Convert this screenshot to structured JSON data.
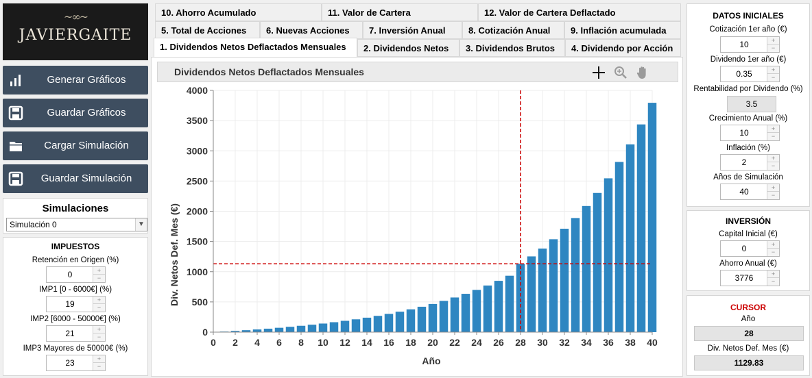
{
  "logo": {
    "text": "JAVIERGAITE",
    "ornament": "~∞~"
  },
  "left_buttons": [
    {
      "label": "Generar Gráficos",
      "icon": "bar-chart-icon"
    },
    {
      "label": "Guardar Gráficos",
      "icon": "floppy-icon"
    },
    {
      "label": "Cargar Simulación",
      "icon": "folder-icon"
    },
    {
      "label": "Guardar Simulación",
      "icon": "floppy-icon"
    }
  ],
  "simulaciones": {
    "title": "Simulaciones",
    "selected": "Simulación 0"
  },
  "impuestos": {
    "title": "IMPUESTOS",
    "fields": [
      {
        "label": "Retención en Origen (%)",
        "value": "0"
      },
      {
        "label": "IMP1 [0 - 6000€] (%)",
        "value": "19"
      },
      {
        "label": "IMP2 [6000 - 50000€] (%)",
        "value": "21"
      },
      {
        "label": "IMP3 Mayores de 50000€ (%)",
        "value": "23"
      }
    ]
  },
  "tabs": {
    "row1": [
      "10. Ahorro Acumulado",
      "11. Valor de Cartera",
      "12. Valor de Cartera Deflactado"
    ],
    "row2": [
      "5. Total de Acciones",
      "6. Nuevas Acciones",
      "7. Inversión Anual",
      "8. Cotización Anual",
      "9. Inflación acumulada"
    ],
    "row3": [
      "1. Dividendos Netos Deflactados Mensuales",
      "2. Dividendos Netos",
      "3. Dividendos Brutos",
      "4. Dividendo por Acción"
    ],
    "active": "1. Dividendos Netos Deflactados Mensuales"
  },
  "chart_panel": {
    "title": "Dividendos Netos Deflactados Mensuales"
  },
  "datos_iniciales": {
    "title": "DATOS INICIALES",
    "fields": [
      {
        "label": "Cotización 1er año (€)",
        "value": "10"
      },
      {
        "label": "Dividendo 1er año (€)",
        "value": "0.35"
      },
      {
        "label": "Rentabilidad por Dividendo (%)",
        "value": "3.5",
        "readonly": true
      },
      {
        "label": "Crecimiento Anual (%)",
        "value": "10"
      },
      {
        "label": "Inflación (%)",
        "value": "2"
      },
      {
        "label": "Años de Simulación",
        "value": "40"
      }
    ]
  },
  "inversion": {
    "title": "INVERSIÓN",
    "fields": [
      {
        "label": "Capital Inicial (€)",
        "value": "0"
      },
      {
        "label": "Ahorro Anual (€)",
        "value": "3776"
      }
    ]
  },
  "cursor": {
    "title": "CURSOR",
    "year_label": "Año",
    "year_value": "28",
    "div_label": "Div. Netos Def. Mes (€)",
    "div_value": "1129.83"
  },
  "colors": {
    "bar": "#2e86c1",
    "cursor": "#cc0000",
    "button_bg": "#3e4e60"
  },
  "chart_data": {
    "type": "bar",
    "title": "",
    "xlabel": "Año",
    "ylabel": "Div. Netos Def. Mes (€)",
    "x": [
      1,
      2,
      3,
      4,
      5,
      6,
      7,
      8,
      9,
      10,
      11,
      12,
      13,
      14,
      15,
      16,
      17,
      18,
      19,
      20,
      21,
      22,
      23,
      24,
      25,
      26,
      27,
      28,
      29,
      30,
      31,
      32,
      33,
      34,
      35,
      36,
      37,
      38,
      39,
      40
    ],
    "values": [
      9,
      20,
      32,
      44,
      57,
      72,
      88,
      105,
      123,
      142,
      164,
      187,
      212,
      239,
      269,
      302,
      338,
      377,
      420,
      466,
      517,
      573,
      634,
      699,
      771,
      849,
      933,
      1130,
      1253,
      1383,
      1537,
      1711,
      1888,
      2087,
      2303,
      2545,
      2816,
      3107,
      3437,
      3795
    ],
    "xlim": [
      0,
      40
    ],
    "ylim": [
      0,
      4000
    ],
    "xticks": [
      "0",
      "2",
      "4",
      "6",
      "8",
      "10",
      "12",
      "14",
      "16",
      "18",
      "20",
      "22",
      "24",
      "26",
      "28",
      "30",
      "32",
      "34",
      "36",
      "38",
      "40"
    ],
    "yticks": [
      "0",
      "500",
      "1000",
      "1500",
      "2000",
      "2500",
      "3000",
      "3500",
      "4000"
    ],
    "cursor": {
      "x": 28,
      "y": 1129.83
    },
    "grid": true
  }
}
